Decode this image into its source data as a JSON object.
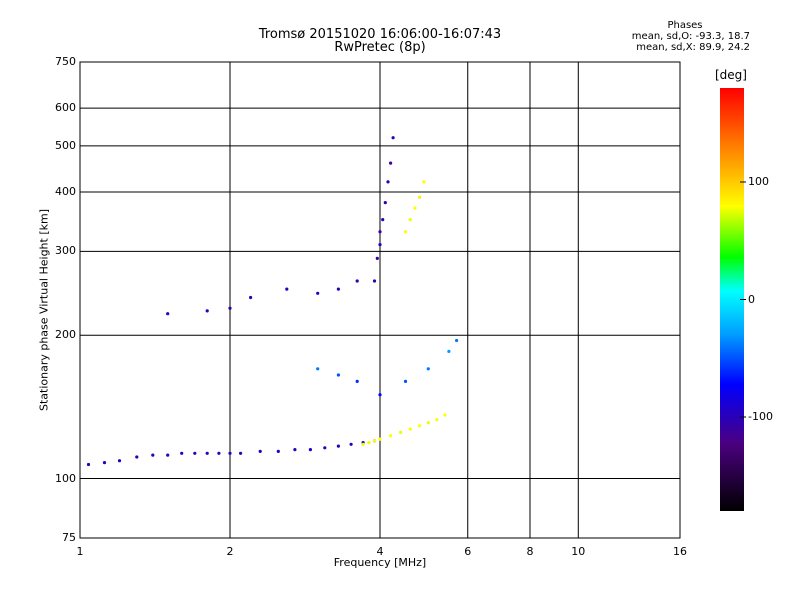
{
  "header": {
    "title_line1": "Tromsø 20151020 16:06:00-16:07:43",
    "title_line2": "RwPretec (8p)",
    "phase_title": "Phases",
    "phase_o": "mean, sd,O: -93.3, 18.7",
    "phase_x": "mean, sd,X:  89.9, 24.2"
  },
  "colorbar": {
    "unit": "[deg]",
    "ticks": [
      "100",
      "0",
      "-100"
    ],
    "tick_values": [
      100,
      0,
      -100
    ],
    "range": [
      -180,
      180
    ]
  },
  "chart_data": {
    "type": "scatter",
    "title": "Tromsø 20151020 16:06:00-16:07:43",
    "subtitle": "RwPretec (8p)",
    "xlabel": "Frequency [MHz]",
    "ylabel": "Stationary phase Virtual Height [km]",
    "xscale": "log",
    "yscale": "log",
    "xlim": [
      1,
      16
    ],
    "ylim": [
      75,
      750
    ],
    "xticks": [
      1,
      2,
      4,
      6,
      8,
      10,
      16
    ],
    "xtick_labels": [
      "1",
      "2",
      "4",
      "6",
      "8",
      "10",
      "16"
    ],
    "yticks": [
      75,
      100,
      200,
      300,
      400,
      500,
      600,
      750
    ],
    "ytick_labels": [
      "75",
      "100",
      "200",
      "300",
      "400",
      "500",
      "600",
      "750"
    ],
    "grid": true,
    "color_by": "phase [deg]",
    "series": [
      {
        "x": [
          1.04,
          1.12,
          1.2,
          1.3,
          1.4,
          1.5,
          1.6,
          1.7,
          1.8,
          1.9,
          2.0,
          2.1,
          2.3,
          2.5,
          2.7,
          2.9,
          3.1,
          3.3,
          3.5,
          3.7,
          3.9
        ],
        "y": [
          107,
          108,
          109,
          111,
          112,
          112,
          113,
          113,
          113,
          113,
          113,
          113,
          114,
          114,
          115,
          115,
          116,
          117,
          118,
          119,
          120
        ],
        "phase": [
          -100,
          -100,
          -100,
          -105,
          -100,
          -100,
          -95,
          -100,
          -100,
          -100,
          -95,
          -100,
          -100,
          -95,
          -100,
          -90,
          -100,
          -95,
          -100,
          -95,
          -100
        ]
      },
      {
        "x": [
          3.7,
          3.8,
          3.9,
          4.0,
          4.2,
          4.4,
          4.6,
          4.8,
          5.0,
          5.2,
          5.4
        ],
        "y": [
          118,
          119,
          120,
          121,
          123,
          125,
          127,
          129,
          131,
          133,
          136
        ],
        "phase": [
          75,
          75,
          80,
          80,
          80,
          75,
          80,
          80,
          75,
          80,
          80
        ]
      },
      {
        "x": [
          3.9,
          3.95,
          4.0,
          4.0,
          4.05,
          4.1,
          4.15,
          4.2,
          4.25
        ],
        "y": [
          260,
          290,
          310,
          330,
          350,
          380,
          420,
          460,
          520
        ],
        "phase": [
          -100,
          -105,
          -100,
          -110,
          -100,
          -105,
          -100,
          -110,
          -100
        ]
      },
      {
        "x": [
          4.5,
          4.6,
          4.7,
          4.8,
          4.9
        ],
        "y": [
          330,
          350,
          370,
          390,
          420
        ],
        "phase": [
          80,
          75,
          80,
          85,
          80
        ]
      },
      {
        "x": [
          1.5,
          1.8,
          2.0,
          2.2,
          2.6,
          3.0,
          3.3,
          3.6
        ],
        "y": [
          222,
          225,
          228,
          240,
          250,
          245,
          250,
          260
        ],
        "phase": [
          -100,
          -100,
          -105,
          -100,
          -100,
          -95,
          -100,
          -105
        ]
      },
      {
        "x": [
          3.0,
          3.3,
          3.6,
          4.0,
          4.5,
          5.0,
          5.5,
          5.7
        ],
        "y": [
          170,
          165,
          160,
          150,
          160,
          170,
          185,
          195
        ],
        "phase": [
          -40,
          -50,
          -60,
          -70,
          -50,
          -40,
          -30,
          -40
        ]
      }
    ]
  }
}
